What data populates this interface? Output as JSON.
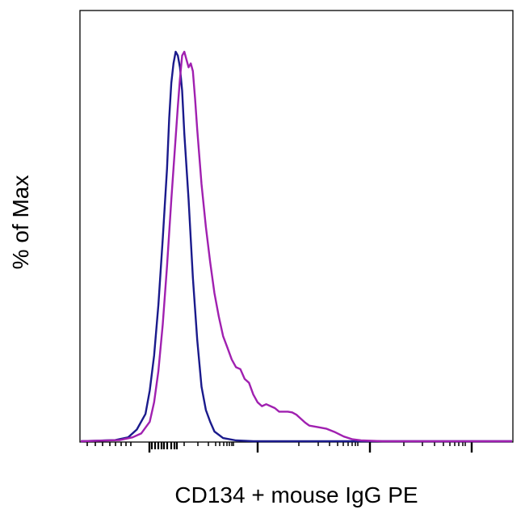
{
  "chart_data": {
    "type": "line",
    "title": "",
    "xlabel": "CD134 + mouse IgG PE",
    "ylabel": "% of Max",
    "x_scale": "log (tick marks only, no tick labels)",
    "y_scale": "linear (no ticks)",
    "grid": false,
    "legend": "none",
    "ylim": [
      0,
      100
    ],
    "series": [
      {
        "color": "#1a1a8c",
        "points": [
          [
            0.0,
            0
          ],
          [
            0.08,
            0.3
          ],
          [
            0.11,
            1
          ],
          [
            0.13,
            3
          ],
          [
            0.15,
            7
          ],
          [
            0.16,
            13
          ],
          [
            0.17,
            22
          ],
          [
            0.18,
            35
          ],
          [
            0.19,
            52
          ],
          [
            0.2,
            70
          ],
          [
            0.205,
            83
          ],
          [
            0.21,
            92
          ],
          [
            0.215,
            97
          ],
          [
            0.22,
            100
          ],
          [
            0.225,
            99
          ],
          [
            0.23,
            96
          ],
          [
            0.235,
            90
          ],
          [
            0.24,
            79
          ],
          [
            0.25,
            62
          ],
          [
            0.26,
            42
          ],
          [
            0.27,
            26
          ],
          [
            0.28,
            14
          ],
          [
            0.29,
            8
          ],
          [
            0.3,
            5
          ],
          [
            0.31,
            2.5
          ],
          [
            0.33,
            0.8
          ],
          [
            0.36,
            0.2
          ],
          [
            0.4,
            0
          ],
          [
            1.0,
            0
          ]
        ]
      },
      {
        "color": "#a020b0",
        "points": [
          [
            0.0,
            0
          ],
          [
            0.09,
            0.3
          ],
          [
            0.12,
            1
          ],
          [
            0.14,
            2
          ],
          [
            0.16,
            5
          ],
          [
            0.17,
            10
          ],
          [
            0.18,
            18
          ],
          [
            0.19,
            30
          ],
          [
            0.2,
            45
          ],
          [
            0.21,
            62
          ],
          [
            0.22,
            78
          ],
          [
            0.225,
            86
          ],
          [
            0.23,
            93
          ],
          [
            0.235,
            99
          ],
          [
            0.24,
            100
          ],
          [
            0.245,
            98
          ],
          [
            0.25,
            96
          ],
          [
            0.255,
            97
          ],
          [
            0.26,
            95
          ],
          [
            0.265,
            88
          ],
          [
            0.27,
            80
          ],
          [
            0.28,
            66
          ],
          [
            0.29,
            55
          ],
          [
            0.3,
            46
          ],
          [
            0.31,
            38
          ],
          [
            0.32,
            32
          ],
          [
            0.33,
            27
          ],
          [
            0.34,
            24
          ],
          [
            0.35,
            21
          ],
          [
            0.36,
            19
          ],
          [
            0.37,
            18.5
          ],
          [
            0.38,
            16
          ],
          [
            0.39,
            15
          ],
          [
            0.4,
            12
          ],
          [
            0.41,
            10
          ],
          [
            0.42,
            9
          ],
          [
            0.43,
            9.5
          ],
          [
            0.44,
            9
          ],
          [
            0.45,
            8.5
          ],
          [
            0.46,
            7.6
          ],
          [
            0.48,
            7.6
          ],
          [
            0.49,
            7.4
          ],
          [
            0.5,
            6.8
          ],
          [
            0.51,
            5.8
          ],
          [
            0.52,
            4.8
          ],
          [
            0.53,
            4.0
          ],
          [
            0.55,
            3.6
          ],
          [
            0.57,
            3.2
          ],
          [
            0.59,
            2.3
          ],
          [
            0.61,
            1.2
          ],
          [
            0.63,
            0.5
          ],
          [
            0.65,
            0.2
          ],
          [
            0.7,
            0
          ],
          [
            1.0,
            0
          ]
        ]
      }
    ]
  }
}
